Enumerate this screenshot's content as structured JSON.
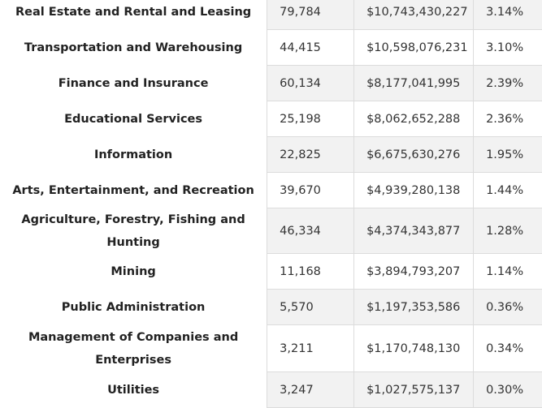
{
  "rows": [
    {
      "industry": "Real Estate and Rental and Leasing",
      "count": "79,784",
      "amount": "$10,743,430,227",
      "share": "3.14%"
    },
    {
      "industry": "Transportation and Warehousing",
      "count": "44,415",
      "amount": "$10,598,076,231",
      "share": "3.10%"
    },
    {
      "industry": "Finance and Insurance",
      "count": "60,134",
      "amount": "$8,177,041,995",
      "share": "2.39%"
    },
    {
      "industry": "Educational Services",
      "count": "25,198",
      "amount": "$8,062,652,288",
      "share": "2.36%"
    },
    {
      "industry": "Information",
      "count": "22,825",
      "amount": "$6,675,630,276",
      "share": "1.95%"
    },
    {
      "industry": "Arts, Entertainment, and Recreation",
      "count": "39,670",
      "amount": "$4,939,280,138",
      "share": "1.44%"
    },
    {
      "industry": "Agriculture, Forestry, Fishing and Hunting",
      "count": "46,334",
      "amount": "$4,374,343,877",
      "share": "1.28%"
    },
    {
      "industry": "Mining",
      "count": "11,168",
      "amount": "$3,894,793,207",
      "share": "1.14%"
    },
    {
      "industry": "Public Administration",
      "count": "5,570",
      "amount": "$1,197,353,586",
      "share": "0.36%"
    },
    {
      "industry": "Management of Companies and Enterprises",
      "count": "3,211",
      "amount": "$1,170,748,130",
      "share": "0.34%"
    },
    {
      "industry": "Utilities",
      "count": "3,247",
      "amount": "$1,027,575,137",
      "share": "0.30%"
    }
  ]
}
